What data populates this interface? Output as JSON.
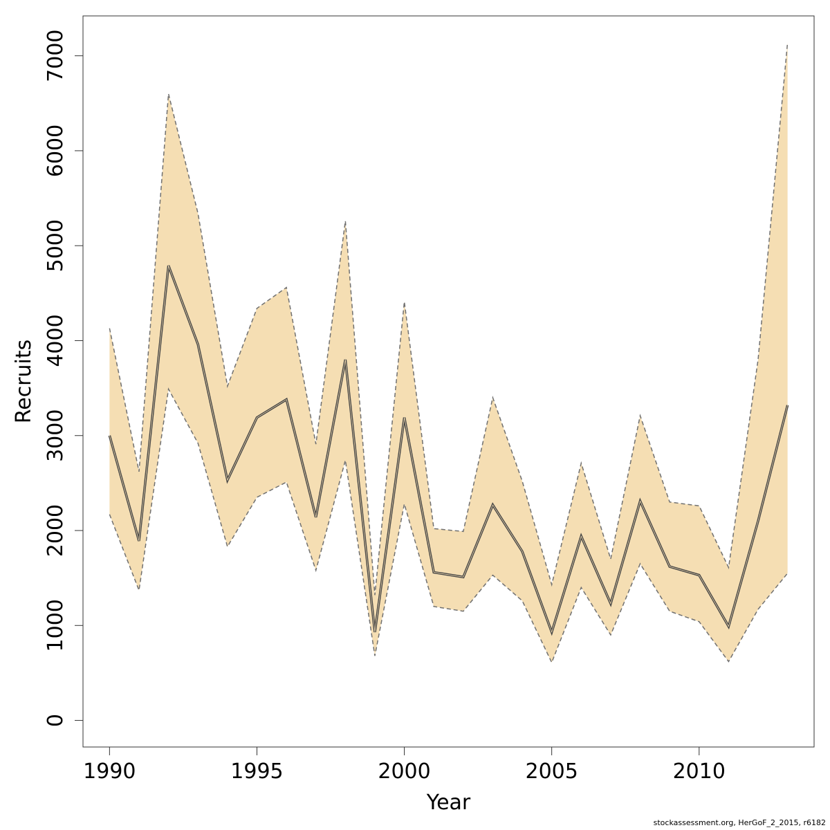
{
  "colors": {
    "band_fill": "#F5DEB3",
    "band_edge": "#707070",
    "median_line": "#444444",
    "axis": "#333333",
    "background": "#ffffff"
  },
  "footer_text": "stockassessment.org, HerGoF_2_2015, r6182",
  "chart_data": {
    "type": "area",
    "title": "",
    "xlabel": "Year",
    "ylabel": "Recruits",
    "xlim": [
      1989.1,
      2013.9
    ],
    "ylim": [
      -280,
      7420
    ],
    "x_ticks": [
      1990,
      1995,
      2000,
      2005,
      2010
    ],
    "y_ticks": [
      0,
      1000,
      2000,
      3000,
      4000,
      5000,
      6000,
      7000
    ],
    "grid": false,
    "legend": "none",
    "x": [
      1990,
      1991,
      1992,
      1993,
      1994,
      1995,
      1996,
      1997,
      1998,
      1999,
      2000,
      2001,
      2002,
      2003,
      2004,
      2005,
      2006,
      2007,
      2008,
      2009,
      2010,
      2011,
      2012,
      2013
    ],
    "series": [
      {
        "role": "estimate",
        "values": [
          3000,
          1890,
          4790,
          3960,
          2530,
          3190,
          3380,
          2140,
          3800,
          930,
          3190,
          1560,
          1510,
          2270,
          1780,
          930,
          1940,
          1230,
          2310,
          1620,
          1530,
          990,
          2100,
          3320
        ]
      },
      {
        "role": "upper",
        "values": [
          4130,
          2620,
          6600,
          5340,
          3520,
          4340,
          4560,
          2910,
          5260,
          1320,
          4410,
          2020,
          1990,
          3400,
          2520,
          1430,
          2710,
          1700,
          3210,
          2300,
          2260,
          1610,
          3800,
          7140
        ]
      },
      {
        "role": "lower",
        "values": [
          2170,
          1370,
          3490,
          2920,
          1830,
          2350,
          2510,
          1580,
          2740,
          680,
          2280,
          1200,
          1150,
          1530,
          1260,
          610,
          1400,
          900,
          1650,
          1150,
          1040,
          620,
          1170,
          1550
        ]
      }
    ]
  }
}
